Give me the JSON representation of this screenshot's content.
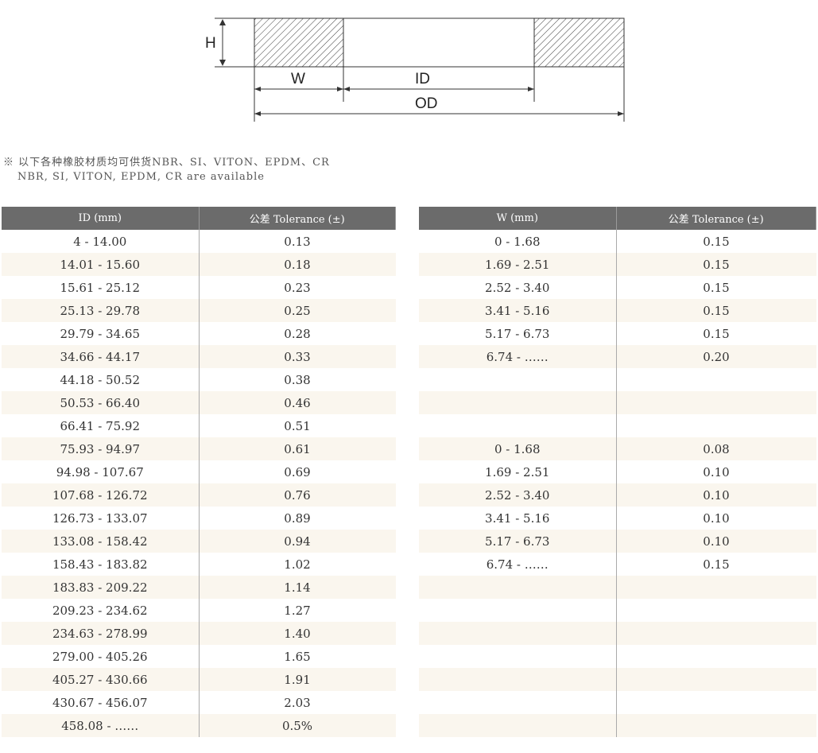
{
  "diagram": {
    "labels": {
      "h": "H",
      "w": "W",
      "id": "ID",
      "od": "OD"
    }
  },
  "note": {
    "line1": "※ 以下各种橡胶材质均可供货NBR、SI、VITON、EPDM、CR",
    "line2": "NBR, SI, VITON, EPDM, CR are available"
  },
  "colors": {
    "header": "#6b6b6b",
    "stripe": "#faf6ee"
  },
  "id_table": {
    "headers": [
      "ID (mm)",
      "公差 Tolerance (±)"
    ],
    "rows": [
      [
        "4 - 14.00",
        "0.13"
      ],
      [
        "14.01 - 15.60",
        "0.18"
      ],
      [
        "15.61 - 25.12",
        "0.23"
      ],
      [
        "25.13 - 29.78",
        "0.25"
      ],
      [
        "29.79 - 34.65",
        "0.28"
      ],
      [
        "34.66 - 44.17",
        "0.33"
      ],
      [
        "44.18 - 50.52",
        "0.38"
      ],
      [
        "50.53 - 66.40",
        "0.46"
      ],
      [
        "66.41 - 75.92",
        "0.51"
      ],
      [
        "75.93 - 94.97",
        "0.61"
      ],
      [
        "94.98 - 107.67",
        "0.69"
      ],
      [
        "107.68 - 126.72",
        "0.76"
      ],
      [
        "126.73 - 133.07",
        "0.89"
      ],
      [
        "133.08 - 158.42",
        "0.94"
      ],
      [
        "158.43 - 183.82",
        "1.02"
      ],
      [
        "183.83 - 209.22",
        "1.14"
      ],
      [
        "209.23 - 234.62",
        "1.27"
      ],
      [
        "234.63 - 278.99",
        "1.40"
      ],
      [
        "279.00 - 405.26",
        "1.65"
      ],
      [
        "405.27 - 430.66",
        "1.91"
      ],
      [
        "430.67 - 456.07",
        "2.03"
      ],
      [
        "458.08 - ……",
        "0.5%"
      ]
    ]
  },
  "w_table": {
    "headers": [
      "W (mm)",
      "公差 Tolerance (±)"
    ],
    "rows": [
      [
        "0 - 1.68",
        "0.15"
      ],
      [
        "1.69 - 2.51",
        "0.15"
      ],
      [
        "2.52 - 3.40",
        "0.15"
      ],
      [
        "3.41 - 5.16",
        "0.15"
      ],
      [
        "5.17 - 6.73",
        "0.15"
      ],
      [
        "6.74 - ……",
        "0.20"
      ],
      [
        "",
        ""
      ],
      [
        "",
        ""
      ],
      [
        "",
        ""
      ],
      [
        "0 - 1.68",
        "0.08"
      ],
      [
        "1.69 - 2.51",
        "0.10"
      ],
      [
        "2.52 - 3.40",
        "0.10"
      ],
      [
        "3.41 - 5.16",
        "0.10"
      ],
      [
        "5.17 - 6.73",
        "0.10"
      ],
      [
        "6.74 - ……",
        "0.15"
      ],
      [
        "",
        ""
      ],
      [
        "",
        ""
      ],
      [
        "",
        ""
      ],
      [
        "",
        ""
      ],
      [
        "",
        ""
      ],
      [
        "",
        ""
      ],
      [
        "",
        ""
      ]
    ]
  }
}
